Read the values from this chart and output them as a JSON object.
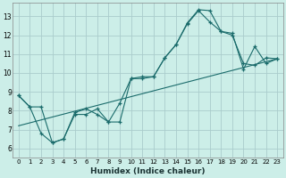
{
  "xlabel": "Humidex (Indice chaleur)",
  "background_color": "#cceee8",
  "grid_color": "#aacccc",
  "line_color": "#1a6b6b",
  "xlim": [
    -0.5,
    23.5
  ],
  "ylim": [
    5.5,
    13.7
  ],
  "xticks": [
    0,
    1,
    2,
    3,
    4,
    5,
    6,
    7,
    8,
    9,
    10,
    11,
    12,
    13,
    14,
    15,
    16,
    17,
    18,
    19,
    20,
    21,
    22,
    23
  ],
  "yticks": [
    6,
    7,
    8,
    9,
    10,
    11,
    12,
    13
  ],
  "line1_x": [
    0,
    1,
    2,
    3,
    4,
    5,
    6,
    7,
    8,
    9,
    10,
    11,
    12,
    13,
    14,
    15,
    16,
    17,
    18,
    19,
    20,
    21,
    22,
    23
  ],
  "line1_y": [
    8.8,
    8.2,
    8.2,
    6.3,
    6.5,
    7.8,
    7.8,
    8.1,
    7.4,
    8.4,
    9.7,
    9.8,
    9.8,
    10.8,
    11.5,
    12.6,
    13.3,
    12.7,
    12.2,
    12.1,
    10.2,
    11.4,
    10.5,
    10.75
  ],
  "line2_x": [
    0,
    1,
    2,
    3,
    4,
    5,
    6,
    7,
    8,
    9,
    10,
    11,
    12,
    13,
    14,
    15,
    16,
    17,
    18,
    19,
    20,
    21,
    22,
    23
  ],
  "line2_y": [
    8.8,
    8.2,
    6.8,
    6.3,
    6.5,
    7.9,
    8.1,
    7.8,
    7.4,
    7.4,
    9.7,
    9.7,
    9.8,
    10.8,
    11.5,
    12.65,
    13.35,
    13.3,
    12.2,
    12.0,
    10.5,
    10.4,
    10.8,
    10.75
  ],
  "line3_x": [
    0,
    23
  ],
  "line3_y": [
    7.2,
    10.75
  ]
}
